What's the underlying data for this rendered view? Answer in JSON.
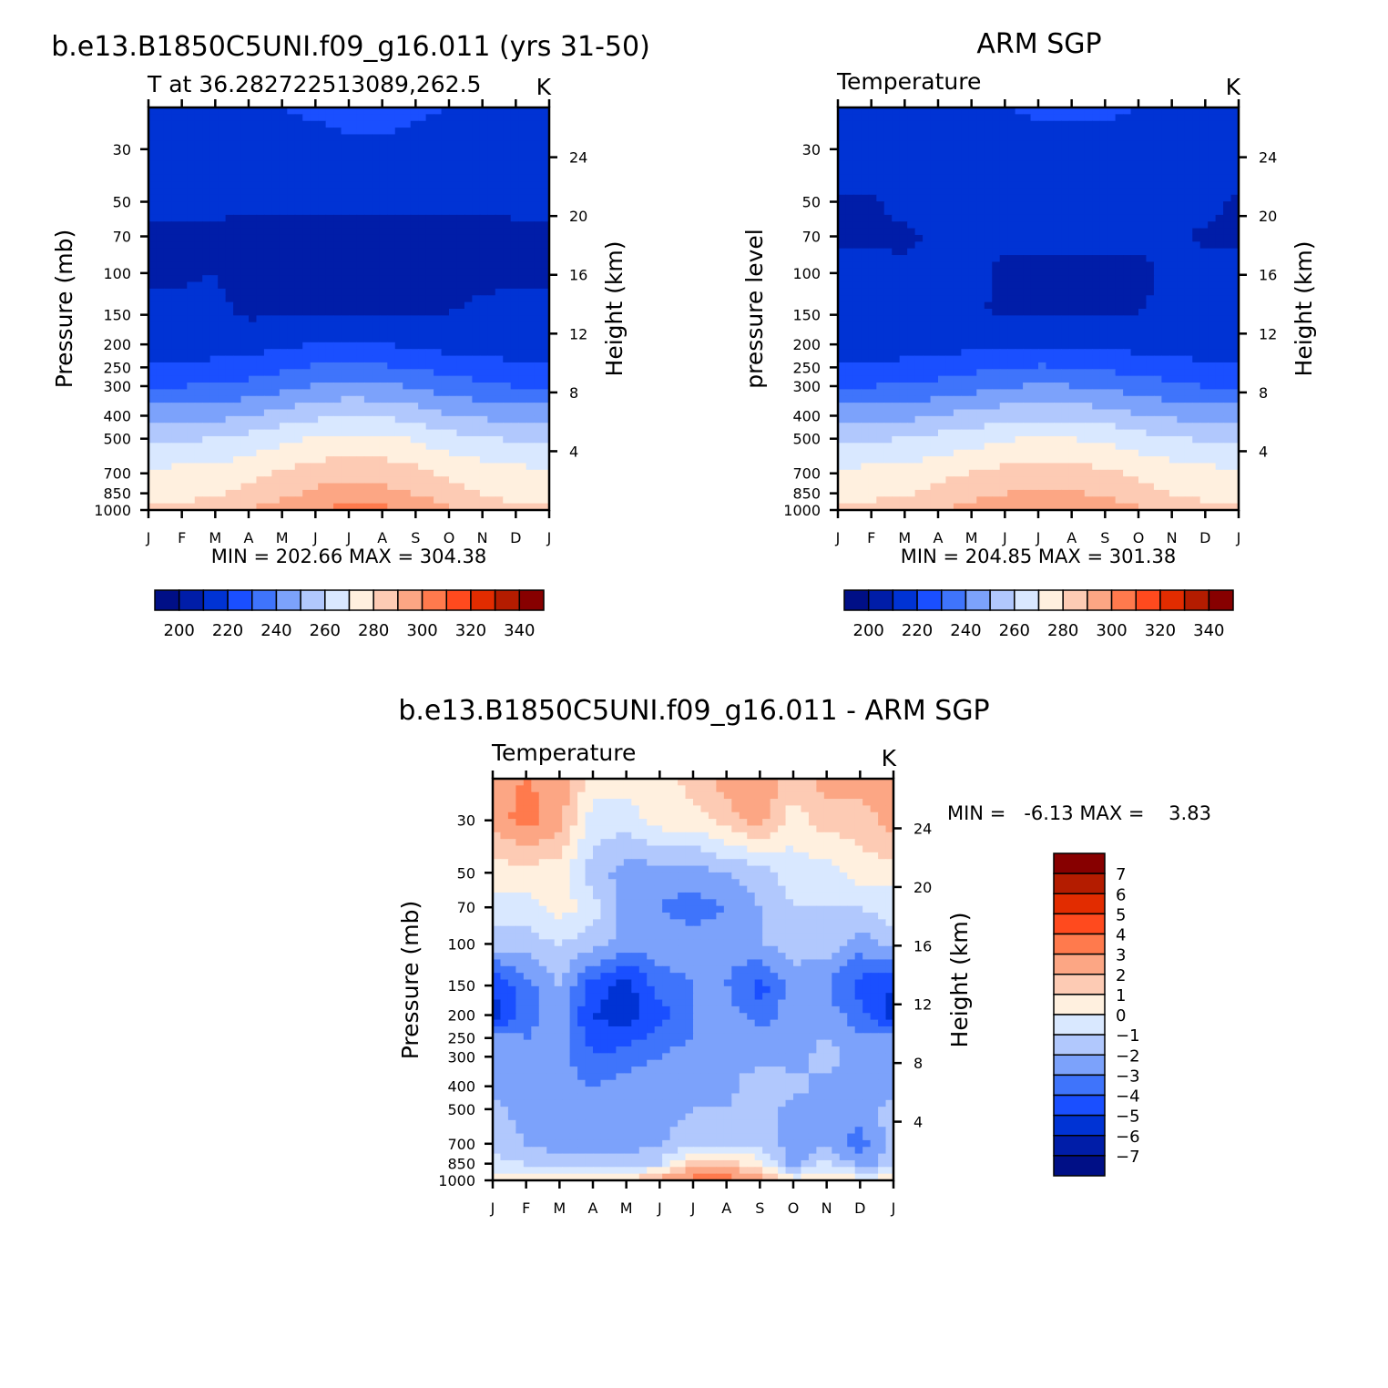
{
  "chart_data": [
    {
      "type": "heatmap",
      "panel": "model",
      "title": "b.e13.B1850C5UNI.f09_g16.011 (yrs 31-50)",
      "subtitle_left": "T at 36.282722513089,262.5",
      "subtitle_right": "K",
      "ylabel": "Pressure (mb)",
      "ylabel_right": "Height (km)",
      "x": [
        "J",
        "F",
        "M",
        "A",
        "M",
        "J",
        "J",
        "A",
        "S",
        "O",
        "N",
        "D",
        "J"
      ],
      "y_pressure_ticks": [
        30,
        50,
        70,
        100,
        150,
        200,
        250,
        300,
        400,
        500,
        700,
        850,
        1000
      ],
      "y_height_ticks": [
        4,
        8,
        12,
        16,
        20,
        24
      ],
      "stats_text": "MIN = 202.66 MAX = 304.38",
      "min": 202.66,
      "max": 304.38,
      "colorbar_ticks": [
        "200",
        "220",
        "240",
        "260",
        "280",
        "300",
        "320",
        "340"
      ],
      "levels": [
        190,
        200,
        210,
        220,
        230,
        240,
        250,
        260,
        270,
        280,
        290,
        300,
        310,
        320,
        330,
        340,
        350
      ],
      "pressure_levels": [
        1000,
        850,
        700,
        500,
        400,
        300,
        250,
        200,
        150,
        100,
        70,
        50,
        30,
        20
      ],
      "values_by_month": [
        [
          281,
          276,
          272,
          258,
          246,
          230,
          222,
          215,
          212,
          209,
          208,
          212,
          216,
          219
        ],
        [
          282,
          277,
          273,
          259,
          246,
          230,
          222,
          215,
          212,
          209,
          208,
          212,
          216,
          219
        ],
        [
          285,
          279,
          274,
          260,
          247,
          231,
          223,
          215,
          212,
          210,
          209,
          212,
          216,
          219
        ],
        [
          290,
          283,
          277,
          263,
          250,
          233,
          225,
          216,
          209,
          206,
          205,
          212,
          216,
          219
        ],
        [
          295,
          288,
          281,
          267,
          254,
          237,
          228,
          218,
          209,
          206,
          206,
          212,
          217,
          220
        ],
        [
          300,
          292,
          285,
          271,
          258,
          241,
          231,
          220,
          209,
          206,
          206,
          212,
          218,
          221
        ],
        [
          304,
          294,
          287,
          273,
          260,
          243,
          232,
          221,
          209,
          206,
          206,
          212,
          219,
          222
        ],
        [
          303,
          293,
          286,
          272,
          259,
          242,
          231,
          220,
          209,
          206,
          206,
          212,
          219,
          222
        ],
        [
          298,
          289,
          283,
          269,
          256,
          239,
          229,
          218,
          209,
          206,
          206,
          212,
          218,
          221
        ],
        [
          291,
          284,
          278,
          264,
          251,
          235,
          226,
          216,
          210,
          207,
          206,
          212,
          217,
          220
        ],
        [
          286,
          280,
          275,
          261,
          248,
          232,
          224,
          215,
          212,
          208,
          207,
          212,
          216,
          219
        ],
        [
          282,
          277,
          273,
          259,
          246,
          230,
          222,
          215,
          212,
          209,
          208,
          212,
          216,
          219
        ],
        [
          281,
          276,
          272,
          258,
          246,
          230,
          222,
          215,
          212,
          209,
          208,
          212,
          216,
          219
        ]
      ]
    },
    {
      "type": "heatmap",
      "panel": "obs",
      "title": "ARM SGP",
      "subtitle_left": "Temperature",
      "subtitle_right": "K",
      "ylabel": "pressure level",
      "ylabel_right": "Height (km)",
      "x": [
        "J",
        "F",
        "M",
        "A",
        "M",
        "J",
        "J",
        "A",
        "S",
        "O",
        "N",
        "D",
        "J"
      ],
      "y_pressure_ticks": [
        30,
        50,
        70,
        100,
        150,
        200,
        250,
        300,
        400,
        500,
        700,
        850,
        1000
      ],
      "y_height_ticks": [
        4,
        8,
        12,
        16,
        20,
        24
      ],
      "stats_text": "MIN = 204.85 MAX = 301.38",
      "min": 204.85,
      "max": 301.38,
      "colorbar_ticks": [
        "200",
        "220",
        "240",
        "260",
        "280",
        "300",
        "320",
        "340"
      ],
      "levels": [
        190,
        200,
        210,
        220,
        230,
        240,
        250,
        260,
        270,
        280,
        290,
        300,
        310,
        320,
        330,
        340,
        350
      ],
      "pressure_levels": [
        1000,
        850,
        700,
        500,
        400,
        300,
        250,
        200,
        150,
        100,
        70,
        50,
        30,
        20
      ],
      "values_by_month": [
        [
          281,
          276,
          272,
          258,
          246,
          230,
          222,
          215,
          212,
          213,
          209,
          209,
          215,
          219
        ],
        [
          283,
          277,
          273,
          259,
          246,
          230,
          222,
          215,
          212,
          212,
          209,
          209,
          215,
          219
        ],
        [
          286,
          279,
          274,
          260,
          247,
          231,
          223,
          215,
          212,
          211,
          209,
          212,
          216,
          219
        ],
        [
          290,
          283,
          277,
          263,
          250,
          233,
          225,
          216,
          212,
          211,
          211,
          212,
          216,
          219
        ],
        [
          294,
          287,
          280,
          266,
          253,
          236,
          227,
          217,
          211,
          211,
          211,
          212,
          216,
          219
        ],
        [
          298,
          290,
          283,
          269,
          256,
          239,
          229,
          218,
          209,
          209,
          211,
          212,
          217,
          220
        ],
        [
          301,
          292,
          285,
          271,
          258,
          241,
          231,
          219,
          209,
          209,
          211,
          212,
          218,
          221
        ],
        [
          301,
          291,
          284,
          270,
          257,
          240,
          230,
          219,
          209,
          209,
          211,
          212,
          218,
          221
        ],
        [
          297,
          288,
          282,
          268,
          255,
          238,
          228,
          218,
          209,
          209,
          211,
          212,
          218,
          221
        ],
        [
          292,
          284,
          278,
          264,
          251,
          235,
          226,
          216,
          210,
          209,
          211,
          212,
          217,
          220
        ],
        [
          288,
          280,
          275,
          261,
          248,
          232,
          224,
          215,
          211,
          211,
          211,
          212,
          216,
          219
        ],
        [
          283,
          277,
          273,
          259,
          246,
          230,
          222,
          215,
          212,
          212,
          209,
          212,
          216,
          219
        ],
        [
          281,
          276,
          272,
          258,
          246,
          230,
          222,
          215,
          212,
          213,
          209,
          209,
          215,
          219
        ]
      ]
    },
    {
      "type": "heatmap",
      "panel": "diff",
      "title": "b.e13.B1850C5UNI.f09_g16.011 - ARM SGP",
      "subtitle_left": "Temperature",
      "subtitle_right": "K",
      "ylabel": "Pressure (mb)",
      "ylabel_right": "Height (km)",
      "x": [
        "J",
        "F",
        "M",
        "A",
        "M",
        "J",
        "J",
        "A",
        "S",
        "O",
        "N",
        "D",
        "J"
      ],
      "y_pressure_ticks": [
        30,
        50,
        70,
        100,
        150,
        200,
        250,
        300,
        400,
        500,
        700,
        850,
        1000
      ],
      "y_height_ticks": [
        4,
        8,
        12,
        16,
        20,
        24
      ],
      "stats_text": "MIN =   -6.13 MAX =    3.83",
      "min": -6.13,
      "max": 3.83,
      "colorbar_ticks": [
        "7",
        "6",
        "5",
        "4",
        "3",
        "2",
        "1",
        "0",
        "-1",
        "-2",
        "-3",
        "-4",
        "-5",
        "-6",
        "-7"
      ],
      "levels": [
        -8,
        -7,
        -6,
        -5,
        -4,
        -3,
        -2,
        -1,
        0,
        1,
        2,
        3,
        4,
        5,
        6,
        7,
        8
      ],
      "pressure_levels": [
        1000,
        850,
        700,
        500,
        400,
        300,
        250,
        200,
        150,
        100,
        70,
        50,
        30,
        20
      ],
      "values_by_month": [
        [
          0.5,
          -0.5,
          -1.5,
          -1.5,
          -2.5,
          -2.5,
          -2.5,
          -5.5,
          -5.0,
          -1.5,
          -0.5,
          0.5,
          2.5,
          2.5
        ],
        [
          0.5,
          -1.0,
          -2.0,
          -2.5,
          -2.5,
          -3.0,
          -3.0,
          -3.5,
          -3.5,
          -1.5,
          -0.5,
          0.5,
          3.5,
          3.0
        ],
        [
          0.5,
          -1.5,
          -2.5,
          -2.5,
          -2.5,
          -2.5,
          -2.5,
          -2.5,
          -2.0,
          -1.0,
          0.5,
          0.5,
          2.5,
          2.5
        ],
        [
          0.5,
          -1.5,
          -3.0,
          -2.5,
          -3.0,
          -4.0,
          -4.5,
          -5.0,
          -4.5,
          -1.5,
          -0.5,
          -1.5,
          -0.5,
          0.5
        ],
        [
          1.0,
          -1.5,
          -2.5,
          -2.5,
          -2.5,
          -3.5,
          -4.5,
          -5.5,
          -5.5,
          -2.5,
          -2.5,
          -2.5,
          -0.5,
          0.5
        ],
        [
          2.5,
          -1.0,
          -2.0,
          -2.5,
          -2.5,
          -3.0,
          -3.5,
          -4.5,
          -3.5,
          -2.5,
          -3.0,
          -2.5,
          0.5,
          0.5
        ],
        [
          3.5,
          1.5,
          -1.5,
          -2.0,
          -2.5,
          -2.5,
          -3.0,
          -3.0,
          -3.0,
          -2.5,
          -3.5,
          -2.5,
          0.5,
          1.5
        ],
        [
          3.5,
          1.5,
          -1.0,
          -2.0,
          -2.5,
          -2.5,
          -2.5,
          -2.5,
          -3.0,
          -2.5,
          -3.0,
          -2.0,
          1.5,
          2.5
        ],
        [
          2.5,
          0.5,
          -1.5,
          -1.5,
          -1.0,
          -2.5,
          -2.5,
          -3.5,
          -4.5,
          -2.0,
          -2.0,
          -1.5,
          2.5,
          3.0
        ],
        [
          0.5,
          -2.5,
          -2.5,
          -2.5,
          -1.5,
          -2.5,
          -2.5,
          -2.5,
          -2.5,
          -1.5,
          -1.0,
          -0.5,
          0.5,
          1.5
        ],
        [
          0.5,
          -0.5,
          -2.5,
          -2.5,
          -2.5,
          -1.5,
          -2.0,
          -2.5,
          -3.0,
          -1.5,
          -1.0,
          -0.5,
          1.5,
          2.5
        ],
        [
          0.5,
          -2.5,
          -3.5,
          -2.5,
          -2.5,
          -2.5,
          -3.0,
          -3.5,
          -4.5,
          -2.5,
          -1.0,
          0.5,
          1.5,
          2.5
        ],
        [
          0.5,
          -1.5,
          -1.5,
          -1.5,
          -2.5,
          -2.5,
          -2.5,
          -5.5,
          -5.0,
          -1.5,
          -0.5,
          0.5,
          2.5,
          2.5
        ]
      ]
    }
  ],
  "palette_temperature": [
    "#000f86",
    "#001da8",
    "#0033d4",
    "#1a4fff",
    "#3f74fb",
    "#7ca2fb",
    "#b1c8fd",
    "#d9e8ff",
    "#fff0df",
    "#fdcbb4",
    "#fca684",
    "#ff7a4d",
    "#ff4a1e",
    "#e22c00",
    "#b41c00",
    "#870000"
  ]
}
